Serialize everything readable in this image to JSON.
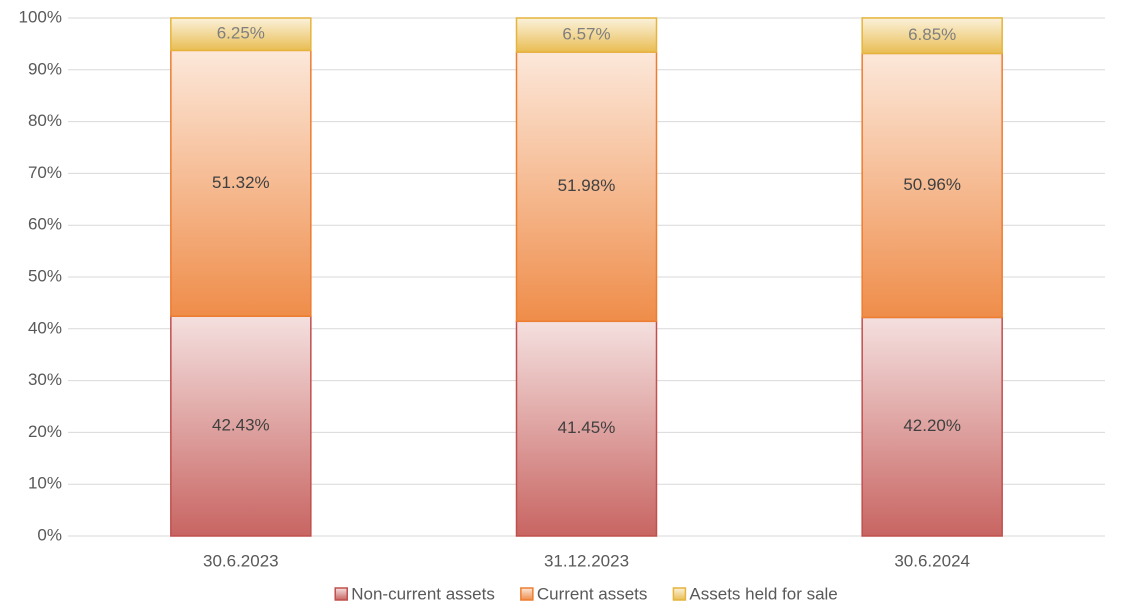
{
  "chart_data": {
    "type": "stacked_bar",
    "categories": [
      "30.6.2023",
      "31.12.2023",
      "30.6.2024"
    ],
    "series": [
      {
        "name": "Non-current assets",
        "color": "#c0504d",
        "values": [
          42.43,
          41.45,
          42.2
        ],
        "value_labels": [
          "42.43%",
          "41.45%",
          "42.20%"
        ]
      },
      {
        "name": "Current assets",
        "color": "#ed7d31",
        "values": [
          51.32,
          51.98,
          50.96
        ],
        "value_labels": [
          "51.32%",
          "51.98%",
          "50.96%"
        ]
      },
      {
        "name": "Assets held for sale",
        "color": "#e6b43c",
        "values": [
          6.25,
          6.57,
          6.85
        ],
        "value_labels": [
          "6.25%",
          "6.57%",
          "6.85%"
        ]
      }
    ],
    "ylim": [
      0,
      100
    ],
    "yticks": [
      {
        "value": 0,
        "label": "0%"
      },
      {
        "value": 10,
        "label": "10%"
      },
      {
        "value": 20,
        "label": "20%"
      },
      {
        "value": 30,
        "label": "30%"
      },
      {
        "value": 40,
        "label": "40%"
      },
      {
        "value": 50,
        "label": "50%"
      },
      {
        "value": 60,
        "label": "60%"
      },
      {
        "value": 70,
        "label": "70%"
      },
      {
        "value": 80,
        "label": "80%"
      },
      {
        "value": 90,
        "label": "90%"
      },
      {
        "value": 100,
        "label": "100%"
      }
    ],
    "grid": true,
    "legend": "bottom"
  }
}
